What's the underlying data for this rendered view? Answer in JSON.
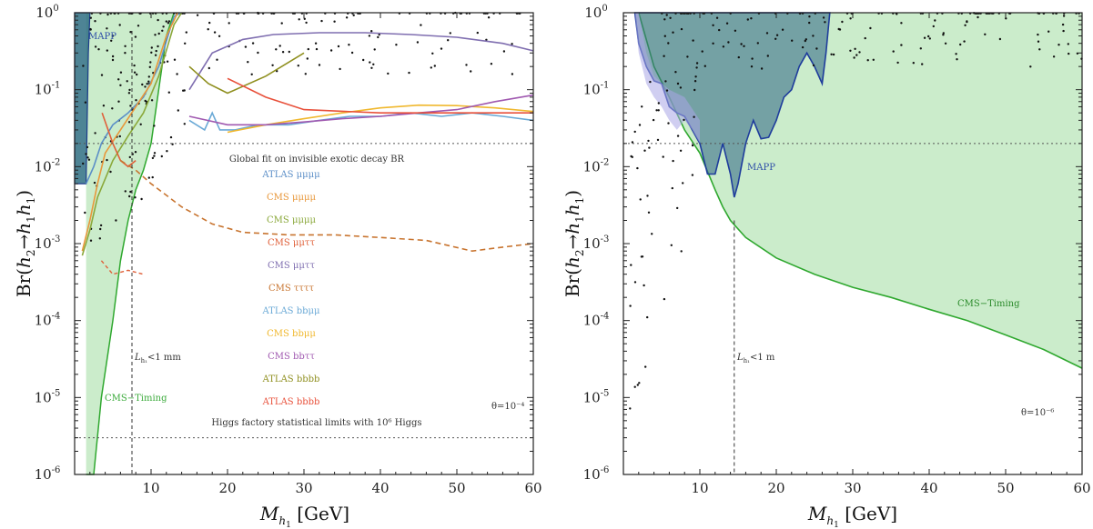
{
  "chart_data": [
    {
      "type": "line",
      "xlabel": "M_{h_1} [GeV]",
      "xlabel_text": "M",
      "xlabel_sub": "h",
      "xlabel_subsub": "1",
      "xlabel_unit": " [GeV]",
      "ylabel": "Br(h2→h1h1)",
      "y_scale": "log",
      "xlim": [
        0,
        60
      ],
      "ylim": [
        1e-06,
        1
      ],
      "x_ticks": [
        10,
        20,
        30,
        40,
        50,
        60
      ],
      "y_ticks": [
        {
          "base": "10",
          "exp": "-6"
        },
        {
          "base": "10",
          "exp": "-5"
        },
        {
          "base": "10",
          "exp": "-4"
        },
        {
          "base": "10",
          "exp": "-3"
        },
        {
          "base": "10",
          "exp": "-2"
        },
        {
          "base": "10",
          "exp": "-1"
        },
        {
          "base": "10",
          "exp": "0"
        }
      ],
      "annotations": {
        "mapp": "MAPP",
        "cms_timing": "CMS−Timing",
        "lifetime": "<1 mm",
        "theta": "θ=10⁻⁴",
        "global_fit": "Global fit on invisible exotic decay BR",
        "higgs_factory": "Higgs factory statistical limits with 10⁶ Higgs"
      },
      "reference_lines": {
        "global_fit_br": 0.02,
        "higgs_factory_br": 3e-06,
        "lifetime_cut_mass": 7.5
      },
      "legend": [
        {
          "label": "ATLAS μμμμ",
          "color": "#5b8ec7"
        },
        {
          "label": "CMS μμμμ",
          "color": "#e8973a"
        },
        {
          "label": "CMS μμμμ",
          "color": "#8aa83a"
        },
        {
          "label": "CMS μμττ",
          "color": "#e0603a"
        },
        {
          "label": "CMS μμττ",
          "color": "#7f6eb0"
        },
        {
          "label": "CMS ττττ",
          "color": "#c8742f"
        },
        {
          "label": "ATLAS bbμμ",
          "color": "#6aa9d6"
        },
        {
          "label": "CMS bbμμ",
          "color": "#f0b82e"
        },
        {
          "label": "CMS bbττ",
          "color": "#a059b0"
        },
        {
          "label": "ATLAS bbbb",
          "color": "#8f8f1f"
        },
        {
          "label": "ATLAS bbbb",
          "color": "#e8503a"
        }
      ],
      "series": [
        {
          "name": "ATLAS μμμμ",
          "color": "#5b8ec7",
          "points": [
            [
              1.5,
              0.006
            ],
            [
              2.5,
              0.01
            ],
            [
              3.5,
              0.02
            ],
            [
              5,
              0.035
            ],
            [
              7,
              0.05
            ],
            [
              9,
              0.08
            ],
            [
              11,
              0.2
            ],
            [
              13,
              0.9
            ],
            [
              14,
              1.0
            ]
          ]
        },
        {
          "name": "CMS μμμμ",
          "color": "#e8973a",
          "points": [
            [
              1,
              0.0008
            ],
            [
              2,
              0.002
            ],
            [
              3,
              0.006
            ],
            [
              4,
              0.015
            ],
            [
              6,
              0.03
            ],
            [
              8,
              0.06
            ],
            [
              10,
              0.12
            ],
            [
              12,
              0.5
            ],
            [
              13.5,
              1.0
            ]
          ]
        },
        {
          "name": "CMS μμμμ",
          "color": "#8aa83a",
          "points": [
            [
              1,
              0.0007
            ],
            [
              2,
              0.0015
            ],
            [
              3,
              0.004
            ],
            [
              5,
              0.012
            ],
            [
              7,
              0.025
            ],
            [
              9,
              0.05
            ],
            [
              11,
              0.15
            ],
            [
              13,
              0.7
            ],
            [
              14,
              1.0
            ]
          ]
        },
        {
          "name": "CMS μμττ",
          "color": "#e0603a",
          "points": [
            [
              3.6,
              0.05
            ],
            [
              5,
              0.02
            ],
            [
              6,
              0.012
            ],
            [
              7,
              0.01
            ],
            [
              8,
              0.012
            ]
          ]
        },
        {
          "name": "CMS μμττ",
          "color": "#7f6eb0",
          "points": [
            [
              15,
              0.1
            ],
            [
              18,
              0.3
            ],
            [
              22,
              0.45
            ],
            [
              26,
              0.52
            ],
            [
              32,
              0.55
            ],
            [
              38,
              0.55
            ],
            [
              44,
              0.52
            ],
            [
              50,
              0.48
            ],
            [
              56,
              0.4
            ],
            [
              60,
              0.32
            ]
          ]
        },
        {
          "name": "CMS ττττ",
          "color": "#c8742f",
          "points": [
            [
              6,
              0.012
            ],
            [
              8,
              0.009
            ],
            [
              10,
              0.006
            ],
            [
              14,
              0.003
            ],
            [
              18,
              0.0018
            ],
            [
              22,
              0.0014
            ],
            [
              28,
              0.0013
            ],
            [
              34,
              0.0013
            ],
            [
              40,
              0.0012
            ],
            [
              46,
              0.0011
            ],
            [
              52,
              0.0008
            ],
            [
              56,
              0.0009
            ],
            [
              60,
              0.001
            ]
          ]
        },
        {
          "name": "ATLAS bbμμ",
          "color": "#6aa9d6",
          "points": [
            [
              15,
              0.04
            ],
            [
              17,
              0.03
            ],
            [
              18,
              0.05
            ],
            [
              19,
              0.03
            ],
            [
              21,
              0.03
            ],
            [
              24,
              0.035
            ],
            [
              28,
              0.035
            ],
            [
              32,
              0.04
            ],
            [
              36,
              0.045
            ],
            [
              40,
              0.045
            ],
            [
              44,
              0.05
            ],
            [
              48,
              0.045
            ],
            [
              52,
              0.05
            ],
            [
              56,
              0.045
            ],
            [
              60,
              0.04
            ]
          ]
        },
        {
          "name": "CMS bbμμ",
          "color": "#f0b82e",
          "points": [
            [
              20,
              0.028
            ],
            [
              25,
              0.035
            ],
            [
              30,
              0.042
            ],
            [
              35,
              0.05
            ],
            [
              40,
              0.058
            ],
            [
              45,
              0.063
            ],
            [
              50,
              0.062
            ],
            [
              55,
              0.058
            ],
            [
              60,
              0.052
            ]
          ]
        },
        {
          "name": "CMS bbττ",
          "color": "#a059b0",
          "points": [
            [
              15,
              0.045
            ],
            [
              20,
              0.035
            ],
            [
              25,
              0.035
            ],
            [
              30,
              0.038
            ],
            [
              35,
              0.042
            ],
            [
              40,
              0.045
            ],
            [
              45,
              0.05
            ],
            [
              50,
              0.055
            ],
            [
              55,
              0.07
            ],
            [
              60,
              0.085
            ]
          ]
        },
        {
          "name": "ATLAS bbbb",
          "color": "#8f8f1f",
          "points": [
            [
              15,
              0.2
            ],
            [
              17.5,
              0.12
            ],
            [
              20,
              0.09
            ],
            [
              25,
              0.15
            ],
            [
              30,
              0.3
            ]
          ]
        },
        {
          "name": "ATLAS bbbb",
          "color": "#e8503a",
          "points": [
            [
              20,
              0.14
            ],
            [
              25,
              0.08
            ],
            [
              30,
              0.055
            ],
            [
              40,
              0.05
            ],
            [
              50,
              0.05
            ],
            [
              60,
              0.05
            ]
          ]
        }
      ]
    },
    {
      "type": "area",
      "xlabel": "M_{h_1} [GeV]",
      "xlabel_text": "M",
      "xlabel_sub": "h",
      "xlabel_subsub": "1",
      "xlabel_unit": " [GeV]",
      "ylabel": "Br(h2→h1h1)",
      "y_scale": "log",
      "xlim": [
        0,
        60
      ],
      "ylim": [
        1e-06,
        1
      ],
      "x_ticks": [
        10,
        20,
        30,
        40,
        50,
        60
      ],
      "y_ticks": [
        {
          "base": "10",
          "exp": "-6"
        },
        {
          "base": "10",
          "exp": "-5"
        },
        {
          "base": "10",
          "exp": "-4"
        },
        {
          "base": "10",
          "exp": "-3"
        },
        {
          "base": "10",
          "exp": "-2"
        },
        {
          "base": "10",
          "exp": "-1"
        },
        {
          "base": "10",
          "exp": "0"
        }
      ],
      "annotations": {
        "mapp": "MAPP",
        "cms_timing": "CMS−Timing",
        "lifetime": "<1 m",
        "theta": "θ=10⁻⁶"
      },
      "reference_lines": {
        "global_fit_br": 0.02,
        "lifetime_cut_mass": 14.5
      },
      "regions": [
        {
          "name": "MAPP",
          "color": "#2f4fa8",
          "points": [
            [
              1.5,
              1
            ],
            [
              2,
              0.4
            ],
            [
              3,
              0.2
            ],
            [
              4,
              0.13
            ],
            [
              5,
              0.12
            ],
            [
              6,
              0.06
            ],
            [
              7,
              0.05
            ],
            [
              8,
              0.045
            ],
            [
              9,
              0.03
            ],
            [
              10,
              0.02
            ],
            [
              11,
              0.008
            ],
            [
              12,
              0.008
            ],
            [
              13,
              0.02
            ],
            [
              14,
              0.008
            ],
            [
              14.5,
              0.004
            ],
            [
              15,
              0.006
            ],
            [
              16,
              0.02
            ],
            [
              17,
              0.04
            ],
            [
              18,
              0.023
            ],
            [
              19,
              0.024
            ],
            [
              20,
              0.04
            ],
            [
              21,
              0.08
            ],
            [
              22,
              0.1
            ],
            [
              23,
              0.2
            ],
            [
              24,
              0.3
            ],
            [
              25,
              0.2
            ],
            [
              26,
              0.12
            ],
            [
              26.5,
              0.3
            ],
            [
              27,
              1
            ]
          ]
        },
        {
          "name": "CMS−Timing",
          "color": "#3aaa3a",
          "points": [
            [
              2,
              1
            ],
            [
              4,
              0.2
            ],
            [
              6,
              0.08
            ],
            [
              8,
              0.03
            ],
            [
              10,
              0.015
            ],
            [
              12,
              0.005
            ],
            [
              13,
              0.003
            ],
            [
              14,
              0.002
            ],
            [
              16,
              0.0012
            ],
            [
              20,
              0.00065
            ],
            [
              25,
              0.0004
            ],
            [
              30,
              0.00027
            ],
            [
              35,
              0.0002
            ],
            [
              40,
              0.00014
            ],
            [
              45,
              0.0001
            ],
            [
              50,
              6.5e-05
            ],
            [
              55,
              4.2e-05
            ],
            [
              60,
              2.4e-05
            ]
          ]
        }
      ]
    }
  ]
}
